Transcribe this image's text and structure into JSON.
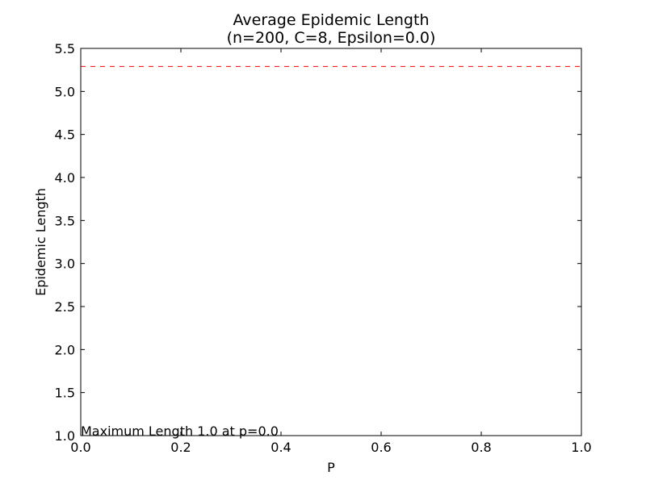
{
  "chart_data": {
    "type": "line",
    "title": "Average Epidemic Length",
    "subtitle": "(n=200, C=8, Epsilon=0.0)",
    "xlabel": "P",
    "ylabel": "Epidemic Length",
    "xlim": [
      0.0,
      1.0
    ],
    "ylim": [
      1.0,
      5.5
    ],
    "x_ticks": [
      "0.0",
      "0.2",
      "0.4",
      "0.6",
      "0.8",
      "1.0"
    ],
    "y_ticks": [
      "1.0",
      "1.5",
      "2.0",
      "2.5",
      "3.0",
      "3.5",
      "4.0",
      "4.5",
      "5.0",
      "5.5"
    ],
    "grid": false,
    "series": [
      {
        "style": "dashed",
        "color": "#ff0000",
        "x": [
          0.0,
          1.0
        ],
        "y": [
          5.29,
          5.29
        ]
      }
    ],
    "annotation": "Maximum Length 1.0 at p=0.0"
  }
}
